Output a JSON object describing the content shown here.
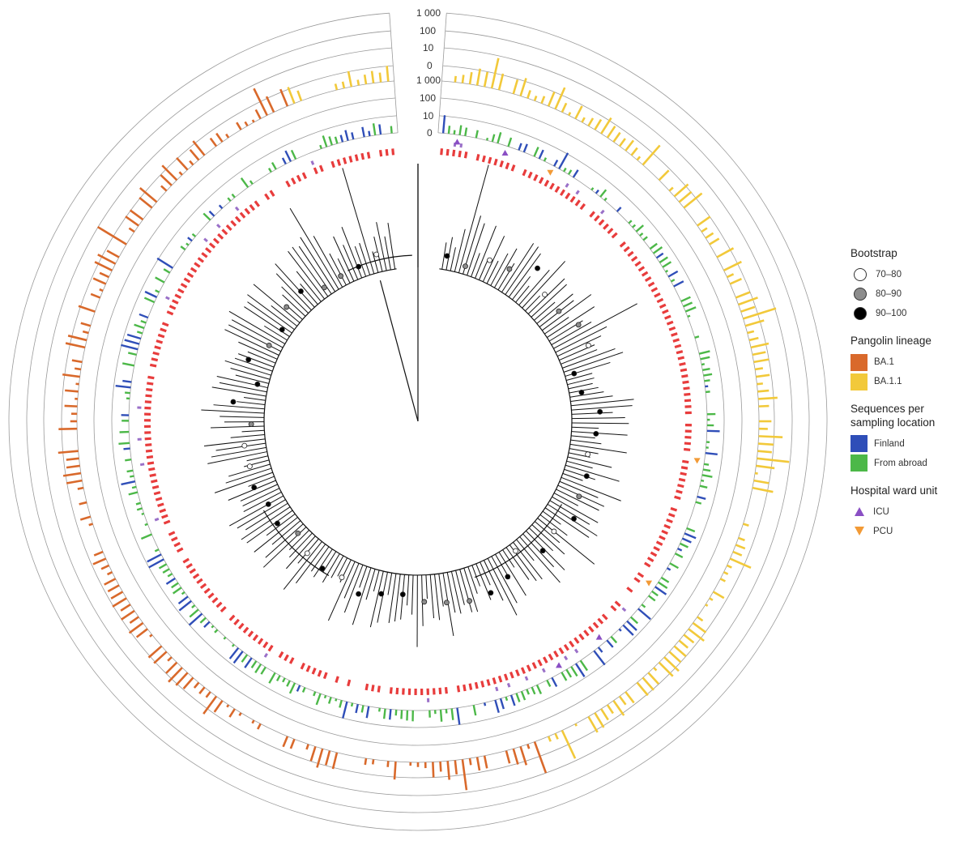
{
  "figure": {
    "scale_labels_outer": [
      "1 000",
      "100",
      "10",
      "0"
    ],
    "scale_labels_inner": [
      "1 000",
      "100",
      "10",
      "0"
    ]
  },
  "legend": {
    "bootstrap": {
      "title": "Bootstrap",
      "items": [
        {
          "label": "70–80",
          "fill": "#ffffff"
        },
        {
          "label": "80–90",
          "fill": "#8c8c8c"
        },
        {
          "label": "90–100",
          "fill": "#000000"
        }
      ]
    },
    "pangolin": {
      "title": "Pangolin lineage",
      "items": [
        {
          "label": "BA.1",
          "color": "#d9692b"
        },
        {
          "label": "BA.1.1",
          "color": "#f2c93a"
        }
      ]
    },
    "sampling": {
      "title": "Sequences per sampling location",
      "items": [
        {
          "label": "Finland",
          "color": "#2f4eb8"
        },
        {
          "label": "From abroad",
          "color": "#4cb848"
        }
      ]
    },
    "ward": {
      "title": "Hospital ward unit",
      "items": [
        {
          "label": "ICU",
          "color": "#8a4fc4",
          "shape": "triangle-up"
        },
        {
          "label": "PCU",
          "color": "#f29a36",
          "shape": "triangle-down"
        }
      ]
    }
  },
  "colors": {
    "ba1": "#d9692b",
    "ba11": "#f2c93a",
    "finland": "#2f4eb8",
    "abroad": "#4cb848",
    "strip": "#e83c3c",
    "strip_alt": "#9a70c8"
  }
}
